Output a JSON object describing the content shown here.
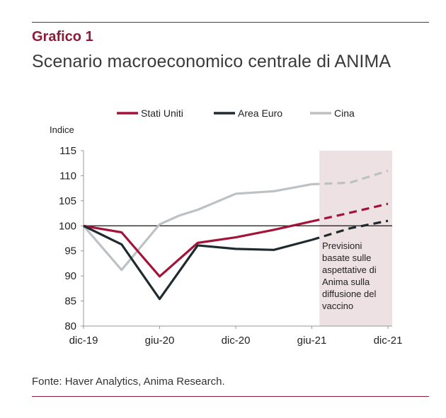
{
  "header": {
    "title": "Grafico 1",
    "subtitle": "Scenario macroeconomico centrale di ANIMA"
  },
  "footer": {
    "source": "Fonte: Haver Analytics, Anima Research."
  },
  "chart_data": {
    "type": "line",
    "ylabel": "Indice",
    "ylim": [
      80,
      115
    ],
    "yticks": [
      80,
      85,
      90,
      95,
      100,
      105,
      110,
      115
    ],
    "xlim": [
      0,
      8
    ],
    "xticks": [
      {
        "x": 0,
        "label": "dic-19"
      },
      {
        "x": 2,
        "label": "giu-20"
      },
      {
        "x": 4,
        "label": "dic-20"
      },
      {
        "x": 6,
        "label": "giu-21"
      },
      {
        "x": 8,
        "label": "dic-21"
      }
    ],
    "legend_position": "top",
    "reference_line": 100,
    "forecast_region": [
      6.2,
      8
    ],
    "forecast_note": "Previsioni basate sulle aspettative di Anima sulla diffusione del vaccino",
    "series": [
      {
        "name": "Stati Uniti",
        "color": "#a3143a",
        "actual": [
          [
            0,
            100
          ],
          [
            1,
            98.7
          ],
          [
            2,
            89.9
          ],
          [
            3,
            96.6
          ],
          [
            4,
            97.7
          ],
          [
            5,
            99.2
          ],
          [
            6,
            100.9
          ]
        ],
        "forecast": [
          [
            6,
            100.9
          ],
          [
            7,
            102.6
          ],
          [
            8,
            104.4
          ]
        ]
      },
      {
        "name": "Area Euro",
        "color": "#1f2a2e",
        "actual": [
          [
            0,
            100
          ],
          [
            1,
            96.3
          ],
          [
            2,
            85.4
          ],
          [
            3,
            96.1
          ],
          [
            4,
            95.4
          ],
          [
            5,
            95.2
          ],
          [
            6,
            97.2
          ]
        ],
        "forecast": [
          [
            6,
            97.2
          ],
          [
            7,
            99.5
          ],
          [
            8,
            101
          ]
        ]
      },
      {
        "name": "Cina",
        "color": "#bcc1c4",
        "actual": [
          [
            0,
            100
          ],
          [
            1,
            91.2
          ],
          [
            2,
            100.3
          ],
          [
            2.5,
            102
          ],
          [
            3,
            103.2
          ],
          [
            4,
            106.4
          ],
          [
            5,
            106.9
          ],
          [
            6,
            108.3
          ]
        ],
        "forecast": [
          [
            6,
            108.3
          ],
          [
            7,
            108.6
          ],
          [
            8,
            111
          ]
        ]
      }
    ]
  }
}
